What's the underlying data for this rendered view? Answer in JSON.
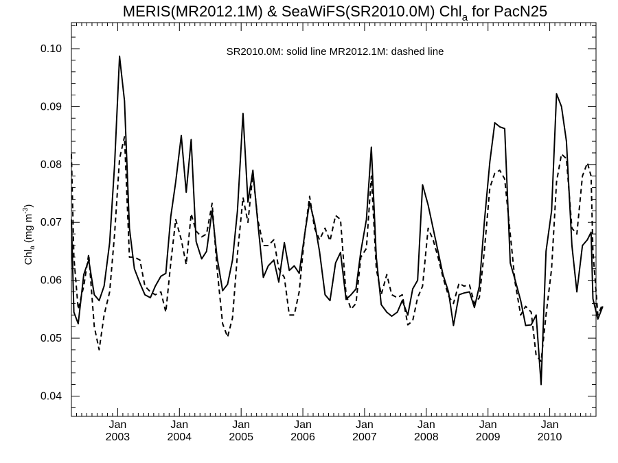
{
  "chart_data": {
    "type": "line",
    "title": {
      "main": "MERIS(MR2012.1M) & SeaWiFS(SR2010.0M)  Chl",
      "sub": "a",
      "suffix": " for PacN25"
    },
    "ylabel": {
      "main": "Chl",
      "sub": "a",
      "mid": " (mg m",
      "sup": "-3",
      "end": ")"
    },
    "annotation": "SR2010.0M: solid line   MR2012.1M: dashed line",
    "xlim": [
      2002.25,
      2010.75
    ],
    "ylim": [
      0.0365,
      0.1045
    ],
    "yticks": [
      "0.04",
      "0.05",
      "0.06",
      "0.07",
      "0.08",
      "0.09",
      "0.10"
    ],
    "xticks": [
      {
        "month": "Jan",
        "year": "2003"
      },
      {
        "month": "Jan",
        "year": "2004"
      },
      {
        "month": "Jan",
        "year": "2005"
      },
      {
        "month": "Jan",
        "year": "2006"
      },
      {
        "month": "Jan",
        "year": "2007"
      },
      {
        "month": "Jan",
        "year": "2008"
      },
      {
        "month": "Jan",
        "year": "2009"
      },
      {
        "month": "Jan",
        "year": "2010"
      }
    ],
    "series": [
      {
        "name": "SR2010.0M",
        "style": "solid",
        "color": "#000000",
        "points": [
          [
            2002.25,
            0.0705
          ],
          [
            2002.29,
            0.0545
          ],
          [
            2002.36,
            0.0525
          ],
          [
            2002.45,
            0.061
          ],
          [
            2002.53,
            0.0635
          ],
          [
            2002.62,
            0.0575
          ],
          [
            2002.7,
            0.0565
          ],
          [
            2002.78,
            0.059
          ],
          [
            2002.87,
            0.0665
          ],
          [
            2002.95,
            0.08
          ],
          [
            2003.03,
            0.0987
          ],
          [
            2003.11,
            0.091
          ],
          [
            2003.19,
            0.069
          ],
          [
            2003.27,
            0.062
          ],
          [
            2003.36,
            0.0595
          ],
          [
            2003.44,
            0.0575
          ],
          [
            2003.53,
            0.057
          ],
          [
            2003.61,
            0.059
          ],
          [
            2003.7,
            0.0607
          ],
          [
            2003.78,
            0.0612
          ],
          [
            2003.86,
            0.071
          ],
          [
            2003.94,
            0.077
          ],
          [
            2004.03,
            0.085
          ],
          [
            2004.11,
            0.0752
          ],
          [
            2004.19,
            0.0843
          ],
          [
            2004.27,
            0.0667
          ],
          [
            2004.36,
            0.0637
          ],
          [
            2004.44,
            0.065
          ],
          [
            2004.53,
            0.072
          ],
          [
            2004.61,
            0.064
          ],
          [
            2004.7,
            0.0582
          ],
          [
            2004.78,
            0.0593
          ],
          [
            2004.86,
            0.0635
          ],
          [
            2004.94,
            0.072
          ],
          [
            2005.03,
            0.0888
          ],
          [
            2005.11,
            0.0735
          ],
          [
            2005.19,
            0.079
          ],
          [
            2005.27,
            0.07
          ],
          [
            2005.36,
            0.0605
          ],
          [
            2005.44,
            0.0625
          ],
          [
            2005.53,
            0.0635
          ],
          [
            2005.61,
            0.0597
          ],
          [
            2005.7,
            0.0665
          ],
          [
            2005.78,
            0.0617
          ],
          [
            2005.86,
            0.0625
          ],
          [
            2005.94,
            0.0612
          ],
          [
            2006.03,
            0.068
          ],
          [
            2006.11,
            0.0735
          ],
          [
            2006.19,
            0.07
          ],
          [
            2006.27,
            0.065
          ],
          [
            2006.36,
            0.0575
          ],
          [
            2006.44,
            0.0565
          ],
          [
            2006.53,
            0.063
          ],
          [
            2006.61,
            0.0648
          ],
          [
            2006.7,
            0.0567
          ],
          [
            2006.78,
            0.0575
          ],
          [
            2006.86,
            0.0585
          ],
          [
            2006.94,
            0.065
          ],
          [
            2007.03,
            0.0705
          ],
          [
            2007.11,
            0.083
          ],
          [
            2007.19,
            0.064
          ],
          [
            2007.27,
            0.0558
          ],
          [
            2007.36,
            0.0545
          ],
          [
            2007.44,
            0.0538
          ],
          [
            2007.53,
            0.0545
          ],
          [
            2007.61,
            0.0565
          ],
          [
            2007.7,
            0.054
          ],
          [
            2007.78,
            0.0585
          ],
          [
            2007.86,
            0.06
          ],
          [
            2007.94,
            0.0765
          ],
          [
            2008.03,
            0.073
          ],
          [
            2008.11,
            0.069
          ],
          [
            2008.19,
            0.065
          ],
          [
            2008.27,
            0.061
          ],
          [
            2008.36,
            0.058
          ],
          [
            2008.44,
            0.0522
          ],
          [
            2008.53,
            0.0575
          ],
          [
            2008.61,
            0.0578
          ],
          [
            2008.7,
            0.058
          ],
          [
            2008.78,
            0.0553
          ],
          [
            2008.86,
            0.059
          ],
          [
            2008.94,
            0.07
          ],
          [
            2009.03,
            0.0805
          ],
          [
            2009.11,
            0.0872
          ],
          [
            2009.19,
            0.0865
          ],
          [
            2009.27,
            0.0862
          ],
          [
            2009.36,
            0.063
          ],
          [
            2009.44,
            0.06
          ],
          [
            2009.53,
            0.0565
          ],
          [
            2009.61,
            0.0522
          ],
          [
            2009.7,
            0.0523
          ],
          [
            2009.78,
            0.054
          ],
          [
            2009.86,
            0.042
          ],
          [
            2009.94,
            0.065
          ],
          [
            2010.03,
            0.072
          ],
          [
            2010.11,
            0.0922
          ],
          [
            2010.19,
            0.09
          ],
          [
            2010.27,
            0.084
          ],
          [
            2010.36,
            0.066
          ],
          [
            2010.44,
            0.058
          ],
          [
            2010.53,
            0.066
          ],
          [
            2010.61,
            0.067
          ],
          [
            2010.67,
            0.0683
          ],
          [
            2010.7,
            0.0568
          ],
          [
            2010.78,
            0.0533
          ],
          [
            2010.86,
            0.0555
          ]
        ]
      },
      {
        "name": "MR2012.1M",
        "style": "dashed",
        "color": "#000000",
        "points": [
          [
            2002.25,
            0.0818
          ],
          [
            2002.29,
            0.064
          ],
          [
            2002.36,
            0.055
          ],
          [
            2002.45,
            0.059
          ],
          [
            2002.53,
            0.0645
          ],
          [
            2002.62,
            0.052
          ],
          [
            2002.7,
            0.048
          ],
          [
            2002.78,
            0.054
          ],
          [
            2002.87,
            0.058
          ],
          [
            2002.95,
            0.068
          ],
          [
            2003.03,
            0.081
          ],
          [
            2003.11,
            0.0848
          ],
          [
            2003.19,
            0.064
          ],
          [
            2003.27,
            0.064
          ],
          [
            2003.36,
            0.0635
          ],
          [
            2003.44,
            0.059
          ],
          [
            2003.53,
            0.058
          ],
          [
            2003.61,
            0.0575
          ],
          [
            2003.7,
            0.058
          ],
          [
            2003.78,
            0.0545
          ],
          [
            2003.86,
            0.063
          ],
          [
            2003.94,
            0.0705
          ],
          [
            2004.03,
            0.067
          ],
          [
            2004.11,
            0.0627
          ],
          [
            2004.19,
            0.0715
          ],
          [
            2004.27,
            0.0685
          ],
          [
            2004.36,
            0.0675
          ],
          [
            2004.44,
            0.068
          ],
          [
            2004.53,
            0.0733
          ],
          [
            2004.61,
            0.062
          ],
          [
            2004.7,
            0.0525
          ],
          [
            2004.78,
            0.0502
          ],
          [
            2004.86,
            0.0535
          ],
          [
            2004.94,
            0.0645
          ],
          [
            2005.03,
            0.0743
          ],
          [
            2005.11,
            0.07
          ],
          [
            2005.19,
            0.0785
          ],
          [
            2005.27,
            0.0705
          ],
          [
            2005.36,
            0.066
          ],
          [
            2005.44,
            0.066
          ],
          [
            2005.53,
            0.067
          ],
          [
            2005.61,
            0.062
          ],
          [
            2005.7,
            0.0605
          ],
          [
            2005.78,
            0.054
          ],
          [
            2005.86,
            0.054
          ],
          [
            2005.94,
            0.058
          ],
          [
            2006.03,
            0.068
          ],
          [
            2006.11,
            0.0745
          ],
          [
            2006.19,
            0.069
          ],
          [
            2006.27,
            0.067
          ],
          [
            2006.36,
            0.069
          ],
          [
            2006.44,
            0.0668
          ],
          [
            2006.53,
            0.0712
          ],
          [
            2006.61,
            0.0705
          ],
          [
            2006.7,
            0.0575
          ],
          [
            2006.78,
            0.055
          ],
          [
            2006.86,
            0.056
          ],
          [
            2006.94,
            0.064
          ],
          [
            2007.03,
            0.0655
          ],
          [
            2007.11,
            0.078
          ],
          [
            2007.19,
            0.062
          ],
          [
            2007.27,
            0.0575
          ],
          [
            2007.36,
            0.061
          ],
          [
            2007.44,
            0.0575
          ],
          [
            2007.53,
            0.057
          ],
          [
            2007.61,
            0.0575
          ],
          [
            2007.7,
            0.0523
          ],
          [
            2007.78,
            0.053
          ],
          [
            2007.86,
            0.057
          ],
          [
            2007.94,
            0.059
          ],
          [
            2008.03,
            0.069
          ],
          [
            2008.11,
            0.067
          ],
          [
            2008.19,
            0.064
          ],
          [
            2008.27,
            0.0605
          ],
          [
            2008.36,
            0.0573
          ],
          [
            2008.44,
            0.056
          ],
          [
            2008.53,
            0.0595
          ],
          [
            2008.61,
            0.059
          ],
          [
            2008.7,
            0.0592
          ],
          [
            2008.78,
            0.056
          ],
          [
            2008.86,
            0.057
          ],
          [
            2008.94,
            0.065
          ],
          [
            2009.03,
            0.076
          ],
          [
            2009.11,
            0.0785
          ],
          [
            2009.19,
            0.079
          ],
          [
            2009.27,
            0.0775
          ],
          [
            2009.36,
            0.068
          ],
          [
            2009.44,
            0.0595
          ],
          [
            2009.53,
            0.054
          ],
          [
            2009.61,
            0.0555
          ],
          [
            2009.7,
            0.0545
          ],
          [
            2009.78,
            0.047
          ],
          [
            2009.86,
            0.046
          ],
          [
            2009.94,
            0.054
          ],
          [
            2010.03,
            0.062
          ],
          [
            2010.11,
            0.077
          ],
          [
            2010.19,
            0.0818
          ],
          [
            2010.27,
            0.081
          ],
          [
            2010.36,
            0.069
          ],
          [
            2010.44,
            0.068
          ],
          [
            2010.53,
            0.078
          ],
          [
            2010.61,
            0.0803
          ],
          [
            2010.67,
            0.078
          ],
          [
            2010.7,
            0.065
          ],
          [
            2010.78,
            0.054
          ],
          [
            2010.86,
            0.056
          ]
        ]
      }
    ]
  }
}
